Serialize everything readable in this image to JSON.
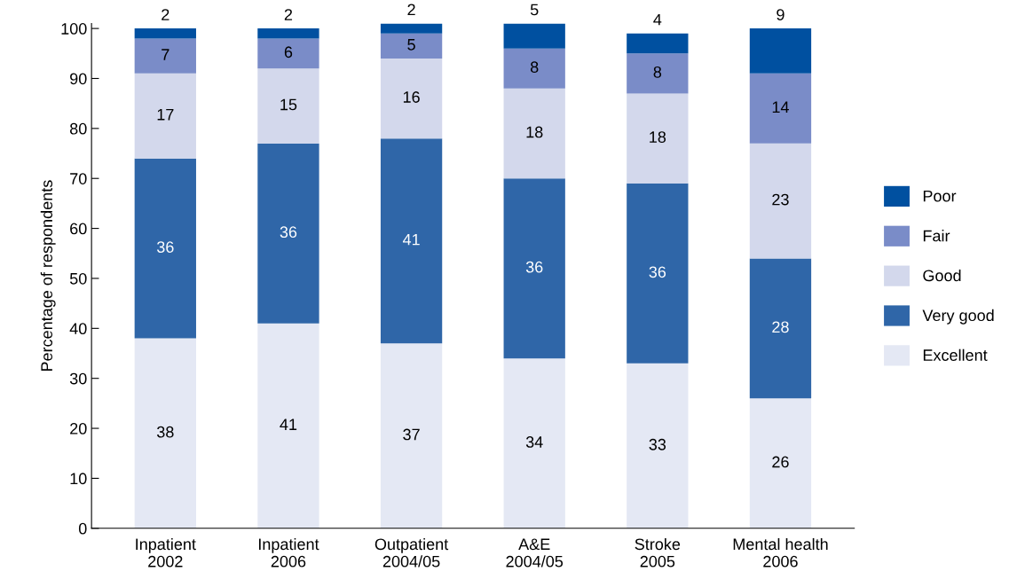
{
  "chart_data": {
    "type": "bar",
    "stacked": true,
    "ylabel": "Percentage of respondents",
    "categories": [
      "Inpatient\n2002",
      "Inpatient\n2006",
      "Outpatient\n2004/05",
      "A&E\n2004/05",
      "Stroke\n2005",
      "Mental health\n2006"
    ],
    "series": [
      {
        "name": "Excellent",
        "color": "#e4e8f4",
        "values": [
          38,
          41,
          37,
          34,
          33,
          26
        ]
      },
      {
        "name": "Very good",
        "color": "#2f66a8",
        "values": [
          36,
          36,
          41,
          36,
          36,
          28
        ]
      },
      {
        "name": "Good",
        "color": "#d3d8ec",
        "values": [
          17,
          15,
          16,
          18,
          18,
          23
        ]
      },
      {
        "name": "Fair",
        "color": "#7a8cc8",
        "values": [
          7,
          6,
          5,
          8,
          8,
          14
        ]
      },
      {
        "name": "Poor",
        "color": "#0050a0",
        "values": [
          2,
          2,
          2,
          5,
          4,
          9
        ]
      }
    ],
    "ylim": [
      0,
      101
    ],
    "yticks": [
      0,
      10,
      20,
      30,
      40,
      50,
      60,
      70,
      80,
      90,
      100
    ],
    "data_labels": true,
    "legend": "right",
    "grid": false
  }
}
